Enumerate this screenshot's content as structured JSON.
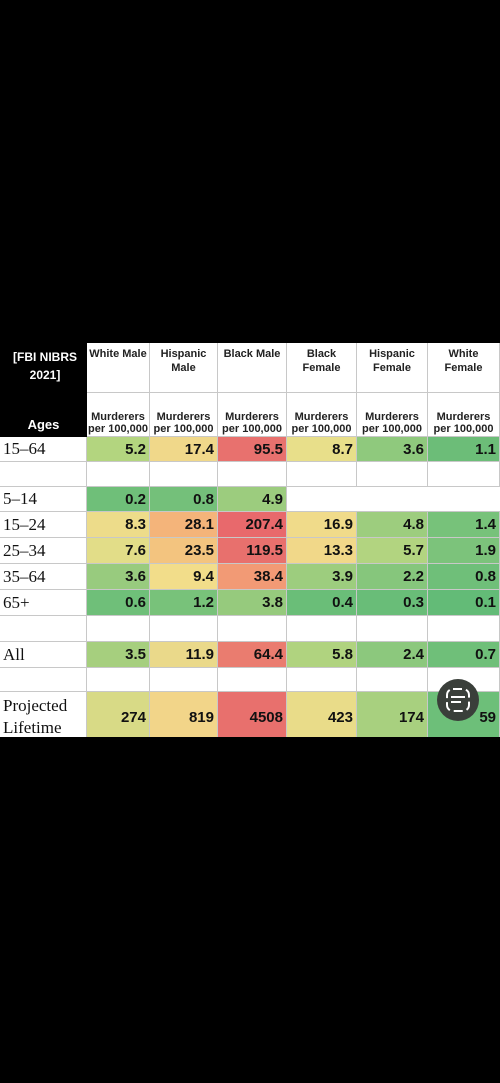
{
  "table": {
    "corner": {
      "source": "[FBI NIBRS 2021]",
      "ages": "Ages"
    },
    "columns": [
      {
        "name": "White Male",
        "unit": "Murderers per 100,000"
      },
      {
        "name": "Hispanic Male",
        "unit": "Murderers per 100,000"
      },
      {
        "name": "Black Male",
        "unit": "Murderers per 100,000"
      },
      {
        "name": "Black Female",
        "unit": "Murderers per 100,000"
      },
      {
        "name": "Hispanic Female",
        "unit": "Murderers per 100,000"
      },
      {
        "name": "White Female",
        "unit": "Murderers per 100,000"
      }
    ],
    "rows": [
      {
        "label": "15–64",
        "values": [
          5.2,
          17.4,
          95.5,
          8.7,
          3.6,
          1.1
        ],
        "colors": [
          "#b3d57f",
          "#f0d88a",
          "#e8716e",
          "#e8df8a",
          "#8fc97d",
          "#6cbd78"
        ]
      },
      {
        "label": "5–14",
        "values": [
          0.2,
          0.8,
          4.9,
          null,
          null,
          null
        ],
        "colors": [
          "#6fbf79",
          "#74c07a",
          "#9ccc7e",
          null,
          null,
          null
        ]
      },
      {
        "label": "15–24",
        "values": [
          8.3,
          28.1,
          207.4,
          16.9,
          4.8,
          1.4
        ],
        "colors": [
          "#eddc8a",
          "#f4b47a",
          "#e8696c",
          "#f0db8a",
          "#9dcd7e",
          "#77c27a"
        ]
      },
      {
        "label": "25–34",
        "values": [
          7.6,
          23.5,
          119.5,
          13.3,
          5.7,
          1.9
        ],
        "colors": [
          "#e2dd88",
          "#f3c47f",
          "#e8706d",
          "#f1d889",
          "#b2d480",
          "#7cc37b"
        ]
      },
      {
        "label": "35–64",
        "values": [
          3.6,
          9.4,
          38.4,
          3.9,
          2.2,
          0.8
        ],
        "colors": [
          "#98cb7e",
          "#f2dd8a",
          "#f29a75",
          "#9dcd7e",
          "#86c67c",
          "#6fbf79"
        ]
      },
      {
        "label": "65+",
        "values": [
          0.6,
          1.2,
          3.8,
          0.4,
          0.3,
          0.1
        ],
        "colors": [
          "#6fbf79",
          "#78c27a",
          "#96ca7d",
          "#6abe78",
          "#69bd78",
          "#63bb77"
        ]
      },
      {
        "label": "All",
        "values": [
          3.5,
          11.9,
          64.4,
          5.8,
          2.4,
          0.7
        ],
        "colors": [
          "#a6cf7e",
          "#ead98a",
          "#ea7c6f",
          "#b0d37f",
          "#8cc87d",
          "#6fbf79"
        ]
      },
      {
        "label": "Projected Lifetime",
        "values": [
          274,
          819,
          4508,
          423,
          174,
          59
        ],
        "colors": [
          "#d8da86",
          "#f2d589",
          "#e8706d",
          "#e9dc89",
          "#a8d07f",
          "#6dbf79"
        ]
      }
    ]
  }
}
